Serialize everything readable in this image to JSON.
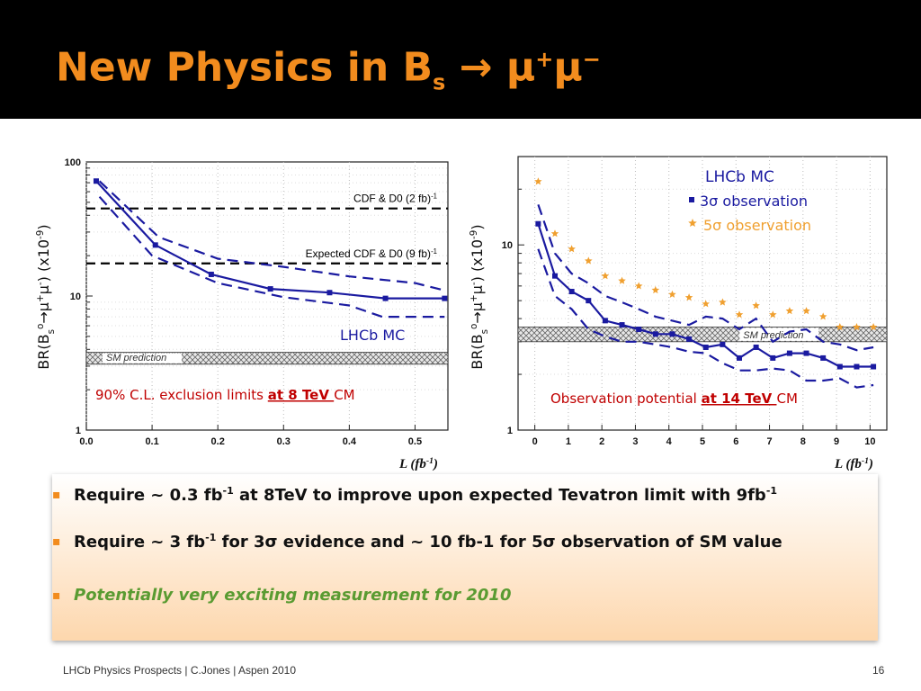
{
  "slide": {
    "title_main": "New Physics in B",
    "title_sub": "s",
    "title_arrow": " → μ",
    "title_sup1": "+",
    "title_mu2": "μ",
    "title_sup2": "−"
  },
  "bullets": [
    {
      "pre": "Require ~ 0.3 fb",
      "sup": "-1",
      "post": " at 8TeV to improve upon expected Tevatron limit with 9fb",
      "sup2": "-1"
    },
    {
      "pre": "Require ~ 3 fb",
      "sup": "-1",
      "post": " for 3σ evidence and ~ 10 fb-1 for 5σ observation of SM value",
      "sup2": ""
    },
    {
      "pre": "Potentially very exciting measurement for 2010",
      "sup": "",
      "post": "",
      "sup2": ""
    }
  ],
  "footer": {
    "left": "LHCb Physics Prospects | C.Jones | Aspen 2010",
    "page": "16"
  },
  "colors": {
    "title": "#f28c1e",
    "curve": "#1a1aa0",
    "red_text": "#c00000",
    "orange_marker": "#f0a030",
    "green_text": "#5a9b32"
  },
  "chart_data": [
    {
      "type": "line",
      "xlabel": "L (fb-1)",
      "ylabel": "BR(Bs0→μ+μ-) (x10-9)",
      "xlim": [
        0,
        0.55
      ],
      "ylim": [
        1,
        100
      ],
      "yscale": "log",
      "x_ticks": [
        "0.0",
        "0.1",
        "0.2",
        "0.3",
        "0.4",
        "0.5"
      ],
      "y_ticks": [
        "1",
        "10",
        "100"
      ],
      "reference_lines": [
        {
          "label": "CDF & D0 (2 fb-1)",
          "y": 45
        },
        {
          "label": "Expected CDF & D0 (9 fb-1)",
          "y": 17.5
        }
      ],
      "band": {
        "label": "SM prediction",
        "y_low": 3.1,
        "y_high": 3.8
      },
      "series": [
        {
          "role": "central",
          "x": [
            0.015,
            0.105,
            0.19,
            0.28,
            0.37,
            0.455,
            0.545
          ],
          "y": [
            72,
            24,
            14.5,
            11.3,
            10.6,
            9.6,
            9.6
          ]
        },
        {
          "role": "upper",
          "x": [
            0.02,
            0.11,
            0.2,
            0.3,
            0.4,
            0.5,
            0.545
          ],
          "y": [
            72,
            27.5,
            19,
            16.5,
            14,
            12.5,
            11
          ]
        },
        {
          "role": "lower",
          "x": [
            0.02,
            0.1,
            0.2,
            0.3,
            0.4,
            0.45,
            0.545
          ],
          "y": [
            55,
            20,
            12.5,
            9.8,
            8.5,
            7,
            7
          ]
        }
      ],
      "annotations": {
        "mc": "LHCb MC",
        "caption_pre": "90% C.L. exclusion limits ",
        "caption_em": "at 8 TeV ",
        "caption_post": "CM"
      }
    },
    {
      "type": "line",
      "xlabel": "L (fb-1)",
      "ylabel": "BR(Bs0→μ+μ-) (x10-9)",
      "xlim": [
        -0.5,
        10.5
      ],
      "ylim": [
        1,
        30
      ],
      "yscale": "log",
      "x_ticks": [
        "0",
        "1",
        "2",
        "3",
        "4",
        "5",
        "6",
        "7",
        "8",
        "9",
        "10"
      ],
      "y_ticks": [
        "1",
        "10"
      ],
      "band": {
        "label": "SM prediction",
        "y_low": 3.0,
        "y_high": 3.6
      },
      "series": [
        {
          "name": "3σ observation",
          "role": "central",
          "x": [
            0.1,
            0.6,
            1.1,
            1.6,
            2.1,
            2.6,
            3.1,
            3.6,
            4.1,
            4.6,
            5.1,
            5.6,
            6.1,
            6.6,
            7.1,
            7.6,
            8.1,
            8.6,
            9.1,
            9.6,
            10.1
          ],
          "y": [
            13,
            6.8,
            5.6,
            5.0,
            3.9,
            3.7,
            3.5,
            3.3,
            3.3,
            3.1,
            2.8,
            2.9,
            2.45,
            2.8,
            2.45,
            2.6,
            2.6,
            2.45,
            2.2,
            2.2,
            2.2
          ]
        },
        {
          "role": "upper",
          "x": [
            0.1,
            0.6,
            1.1,
            1.6,
            2.1,
            2.6,
            3.1,
            3.6,
            4.1,
            4.6,
            5.1,
            5.6,
            6.1,
            6.6,
            7.1,
            7.6,
            8.1,
            8.6,
            9.1,
            9.6,
            10.1
          ],
          "y": [
            16.5,
            9,
            7,
            6.2,
            5.3,
            4.9,
            4.5,
            4.1,
            3.9,
            3.7,
            4.1,
            4.0,
            3.5,
            4.0,
            3.0,
            3.4,
            3.5,
            3.0,
            2.9,
            2.7,
            2.8
          ]
        },
        {
          "role": "lower",
          "x": [
            0.1,
            0.6,
            1.1,
            1.6,
            2.1,
            2.6,
            3.1,
            3.6,
            4.1,
            4.6,
            5.1,
            5.6,
            6.1,
            6.6,
            7.1,
            7.6,
            8.1,
            8.6,
            9.1,
            9.6,
            10.1
          ],
          "y": [
            9.5,
            5.3,
            4.5,
            3.5,
            3.2,
            3.0,
            3.0,
            2.9,
            2.8,
            2.65,
            2.6,
            2.3,
            2.1,
            2.1,
            2.15,
            2.1,
            1.85,
            1.85,
            1.9,
            1.7,
            1.75
          ]
        },
        {
          "name": "5σ observation",
          "role": "stars",
          "x": [
            0.1,
            0.6,
            1.1,
            1.6,
            2.1,
            2.6,
            3.1,
            3.6,
            4.1,
            4.6,
            5.1,
            5.6,
            6.1,
            6.6,
            7.1,
            7.6,
            8.1,
            8.6,
            9.1,
            9.6,
            10.1
          ],
          "y": [
            22,
            11.5,
            9.5,
            8.2,
            6.8,
            6.4,
            6.0,
            5.7,
            5.4,
            5.2,
            4.8,
            4.9,
            4.2,
            4.7,
            4.2,
            4.4,
            4.4,
            4.1,
            3.6,
            3.6,
            3.6
          ]
        }
      ],
      "annotations": {
        "mc": "LHCb MC",
        "legend_3": "3σ observation",
        "legend_5": "5σ observation",
        "caption_pre": "Observation potential ",
        "caption_em": "at 14 TeV ",
        "caption_post": "CM"
      }
    }
  ]
}
